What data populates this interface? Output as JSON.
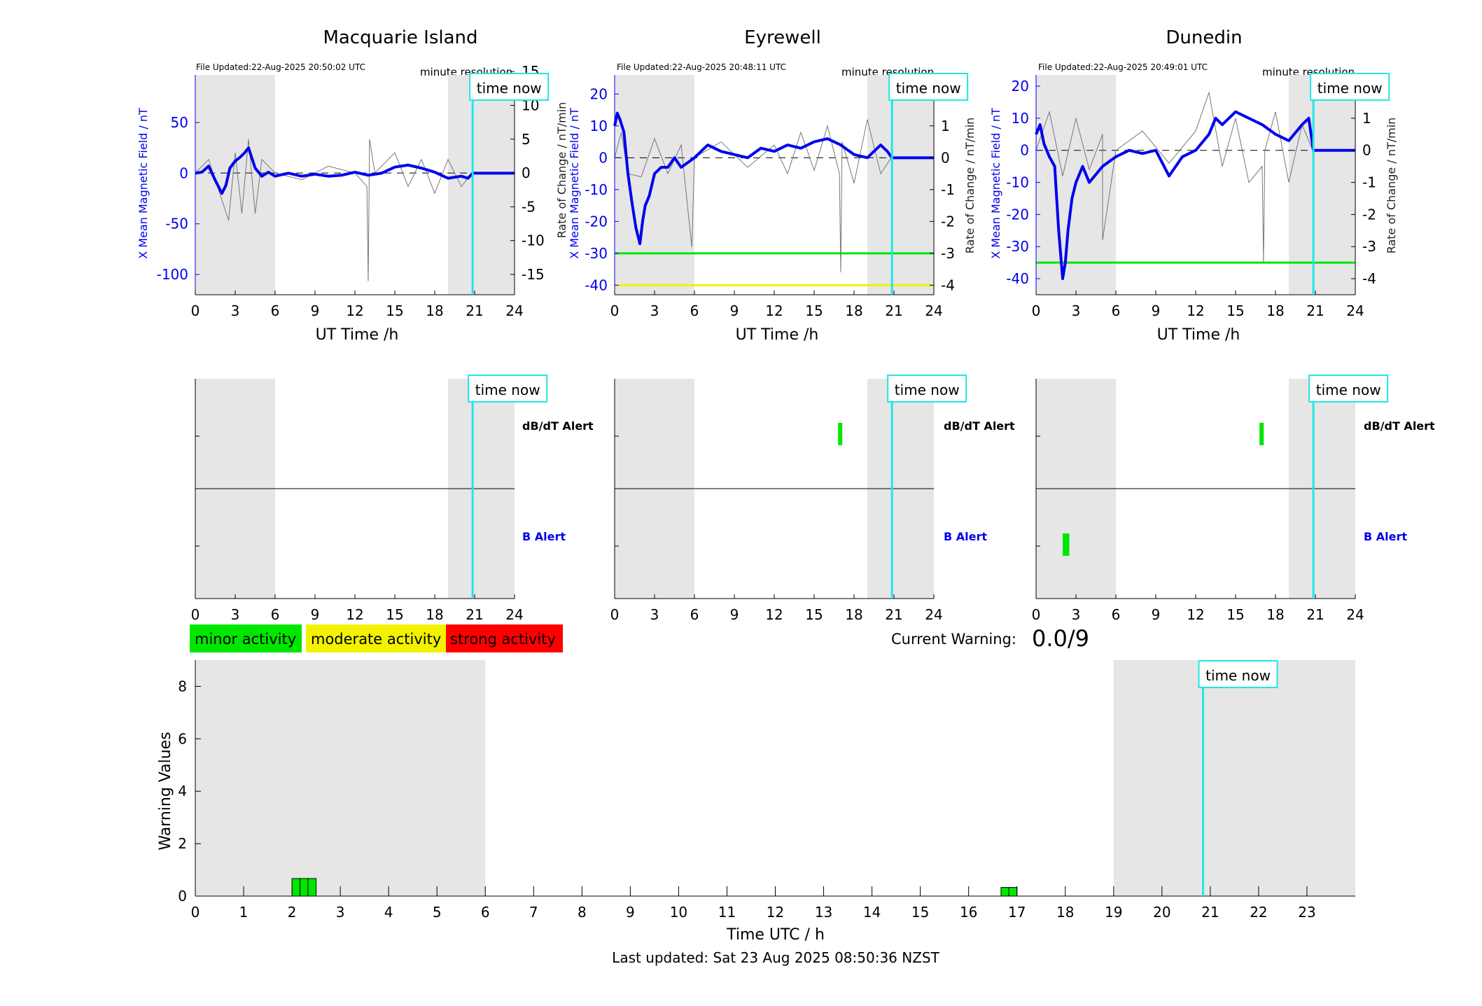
{
  "stations": [
    {
      "name": "Macquarie Island",
      "file_updated": "File Updated:22-Aug-2025 20:50:02 UTC",
      "resolution": "minute resolution",
      "now_label": "time now",
      "ylabel_left": "X Mean Magnetic Field / nT",
      "ylabel_right": "Rate of Change / nT/min",
      "xlabel": "UT Time /h",
      "xlim": [
        0,
        24
      ],
      "xticks": [
        "0",
        "3",
        "6",
        "9",
        "12",
        "15",
        "18",
        "21",
        "24"
      ],
      "ylim_left": [
        -120,
        97
      ],
      "yticks_left": [
        "-100",
        "-50",
        "0",
        "50"
      ],
      "ylim_right": [
        -18,
        14.5
      ],
      "yticks_right": [
        "-15",
        "-10",
        "-5",
        "0",
        "5",
        "10",
        "15"
      ],
      "night_shade": [
        [
          0,
          6
        ],
        [
          19,
          24
        ]
      ],
      "now_h": 20.85,
      "warning_lines": [],
      "field_x": [
        0,
        0.5,
        1,
        1.5,
        2,
        2.3,
        2.6,
        3,
        3.3,
        3.7,
        4,
        4.5,
        5,
        5.5,
        6,
        7,
        8,
        9,
        10,
        11,
        12,
        13,
        14,
        15,
        16,
        17,
        18,
        18.5,
        19,
        19.5,
        20,
        20.5,
        20.85,
        24
      ],
      "field_y": [
        0,
        1,
        7,
        -7,
        -20,
        -12,
        5,
        12,
        15,
        20,
        25,
        5,
        -3,
        1,
        -3,
        0,
        -3,
        -1,
        -3,
        -2,
        1,
        -2,
        0,
        6,
        8,
        5,
        1,
        -2,
        -5,
        -4,
        -3,
        -5,
        0,
        0
      ],
      "rate_x": [
        0,
        1,
        2,
        2.5,
        3,
        3.5,
        4,
        4.5,
        5,
        6,
        8,
        10,
        12,
        12.9,
        13,
        13.1,
        13.5,
        14,
        15,
        16,
        17,
        18,
        19,
        20,
        20.8
      ],
      "rate_y": [
        0,
        2,
        -4,
        -7,
        3,
        -6,
        5,
        -6,
        2,
        0,
        -1,
        1,
        0,
        -2,
        -16,
        5,
        0,
        1,
        3,
        -2,
        2,
        -3,
        2,
        -2,
        0
      ],
      "db_alerts": [],
      "b_alerts": []
    },
    {
      "name": "Eyrewell",
      "file_updated": "File Updated:22-Aug-2025 20:48:11 UTC",
      "resolution": "minute resolution",
      "now_label": "time now",
      "ylabel_left": "X Mean Magnetic Field / nT",
      "ylabel_right": "Rate of Change / nT/min",
      "xlabel": "UT Time /h",
      "xlim": [
        0,
        24
      ],
      "xticks": [
        "0",
        "3",
        "6",
        "9",
        "12",
        "15",
        "18",
        "21",
        "24"
      ],
      "ylim_left": [
        -43,
        26
      ],
      "yticks_left": [
        "-40",
        "-30",
        "-20",
        "-10",
        "0",
        "10",
        "20"
      ],
      "ylim_right": [
        -4.3,
        2.6
      ],
      "yticks_right": [
        "-4",
        "-3",
        "-2",
        "-1",
        "0",
        "1",
        "2"
      ],
      "night_shade": [
        [
          0,
          6
        ],
        [
          19,
          24
        ]
      ],
      "now_h": 20.85,
      "warning_lines": [
        {
          "value": -30,
          "color": "#00e600"
        },
        {
          "value": -40,
          "color": "#f2f200"
        }
      ],
      "field_x": [
        0,
        0.2,
        0.4,
        0.7,
        1,
        1.3,
        1.6,
        1.9,
        2.1,
        2.3,
        2.6,
        3,
        3.5,
        4,
        4.5,
        5,
        6,
        7,
        8,
        9,
        10,
        11,
        12,
        13,
        14,
        15,
        16,
        17,
        18,
        19,
        20,
        20.5,
        20.85,
        24
      ],
      "field_y": [
        10,
        14,
        12,
        8,
        -5,
        -14,
        -22,
        -27,
        -20,
        -15,
        -12,
        -5,
        -3,
        -3,
        0,
        -3,
        0,
        4,
        2,
        1,
        0,
        3,
        2,
        4,
        3,
        5,
        6,
        4,
        1,
        0,
        4,
        2,
        0,
        0
      ],
      "rate_x": [
        0,
        0.5,
        1,
        2,
        3,
        4,
        5,
        5.8,
        6,
        8,
        10,
        12,
        13,
        14,
        15,
        16,
        16.9,
        17,
        17.1,
        18,
        19,
        20,
        20.8
      ],
      "rate_y": [
        0,
        0.8,
        -0.5,
        -0.6,
        0.6,
        -0.5,
        0.4,
        -2.8,
        0,
        0.5,
        -0.3,
        0.4,
        -0.5,
        0.8,
        -0.4,
        1,
        -0.5,
        -3.6,
        0.5,
        -0.8,
        1.2,
        -0.5,
        0
      ],
      "db_alerts": [
        {
          "start": 16.8,
          "end": 17.0
        }
      ],
      "b_alerts": []
    },
    {
      "name": "Dunedin",
      "file_updated": "File Updated:22-Aug-2025 20:49:01 UTC",
      "resolution": "minute resolution",
      "now_label": "time now",
      "ylabel_left": "X Mean Magnetic Field / nT",
      "ylabel_right": "Rate of Change / nT/min",
      "xlabel": "UT Time /h",
      "xlim": [
        0,
        24
      ],
      "xticks": [
        "0",
        "3",
        "6",
        "9",
        "12",
        "15",
        "18",
        "21",
        "24"
      ],
      "ylim_left": [
        -45,
        23.5
      ],
      "yticks_left": [
        "-40",
        "-30",
        "-20",
        "-10",
        "0",
        "10",
        "20"
      ],
      "ylim_right": [
        -4.5,
        2.35
      ],
      "yticks_right": [
        "-4",
        "-3",
        "-2",
        "-1",
        "0",
        "1",
        "2"
      ],
      "night_shade": [
        [
          0,
          6
        ],
        [
          19,
          24
        ]
      ],
      "now_h": 20.85,
      "warning_lines": [
        {
          "value": -35,
          "color": "#00e600"
        }
      ],
      "field_x": [
        0,
        0.3,
        0.6,
        1,
        1.4,
        1.7,
        2,
        2.2,
        2.4,
        2.7,
        3,
        3.5,
        4,
        5,
        6,
        7,
        8,
        9,
        10,
        11,
        12,
        13,
        13.5,
        14,
        15,
        16,
        17,
        18,
        19,
        20,
        20.5,
        20.85,
        24
      ],
      "field_y": [
        5,
        8,
        2,
        -2,
        -5,
        -25,
        -40,
        -35,
        -25,
        -15,
        -10,
        -5,
        -10,
        -5,
        -2,
        0,
        -1,
        0,
        -8,
        -2,
        0,
        5,
        10,
        8,
        12,
        10,
        8,
        5,
        3,
        8,
        10,
        0,
        0
      ],
      "rate_x": [
        0,
        1,
        2,
        3,
        4,
        5,
        5,
        6,
        8,
        10,
        12,
        13,
        14,
        15,
        16,
        17,
        17.1,
        17.2,
        18,
        19,
        20,
        20.8
      ],
      "rate_y": [
        0,
        1.2,
        -0.8,
        1,
        -0.6,
        0.5,
        -2.8,
        0,
        0.6,
        -0.4,
        0.6,
        1.8,
        -0.5,
        1,
        -1,
        -0.5,
        -3.5,
        0,
        1.2,
        -1,
        0.8,
        0
      ],
      "db_alerts": [
        {
          "start": 16.8,
          "end": 17.0
        }
      ],
      "b_alerts": [
        {
          "start": 2.0,
          "end": 2.5
        }
      ]
    }
  ],
  "alerts_panel": {
    "db_label": "dB/dT Alert",
    "b_label": "B Alert",
    "now_label": "time now",
    "xticks": [
      "0",
      "3",
      "6",
      "9",
      "12",
      "15",
      "18",
      "21",
      "24"
    ]
  },
  "legend": {
    "minor": "minor activity",
    "moderate": "moderate activity",
    "strong": "strong activity",
    "minor_color": "#00e600",
    "moderate_color": "#f2f200",
    "strong_color": "#ff0000"
  },
  "current_warning": {
    "label": "Current Warning:",
    "value": "0.0/9"
  },
  "chart_data": {
    "type": "bar",
    "xlabel": "Time UTC / h",
    "ylabel": "Warning Values",
    "now_label": "time now",
    "xlim": [
      0,
      24
    ],
    "ylim": [
      0,
      9
    ],
    "xticks": [
      "0",
      "1",
      "2",
      "3",
      "4",
      "5",
      "6",
      "7",
      "8",
      "9",
      "10",
      "11",
      "12",
      "13",
      "14",
      "15",
      "16",
      "17",
      "18",
      "19",
      "20",
      "21",
      "22",
      "23"
    ],
    "yticks": [
      "0",
      "2",
      "4",
      "6",
      "8"
    ],
    "night_shade": [
      [
        0,
        6
      ],
      [
        19,
        24
      ]
    ],
    "now_h": 20.85,
    "bars": [
      {
        "start": 2.0,
        "end": 2.167,
        "value": 0.67
      },
      {
        "start": 2.167,
        "end": 2.333,
        "value": 0.67
      },
      {
        "start": 2.333,
        "end": 2.5,
        "value": 0.67
      },
      {
        "start": 16.67,
        "end": 16.83,
        "value": 0.33
      },
      {
        "start": 16.83,
        "end": 17.0,
        "value": 0.33
      }
    ]
  },
  "footer": "Last updated: Sat 23 Aug 2025 08:50:36 NZST"
}
